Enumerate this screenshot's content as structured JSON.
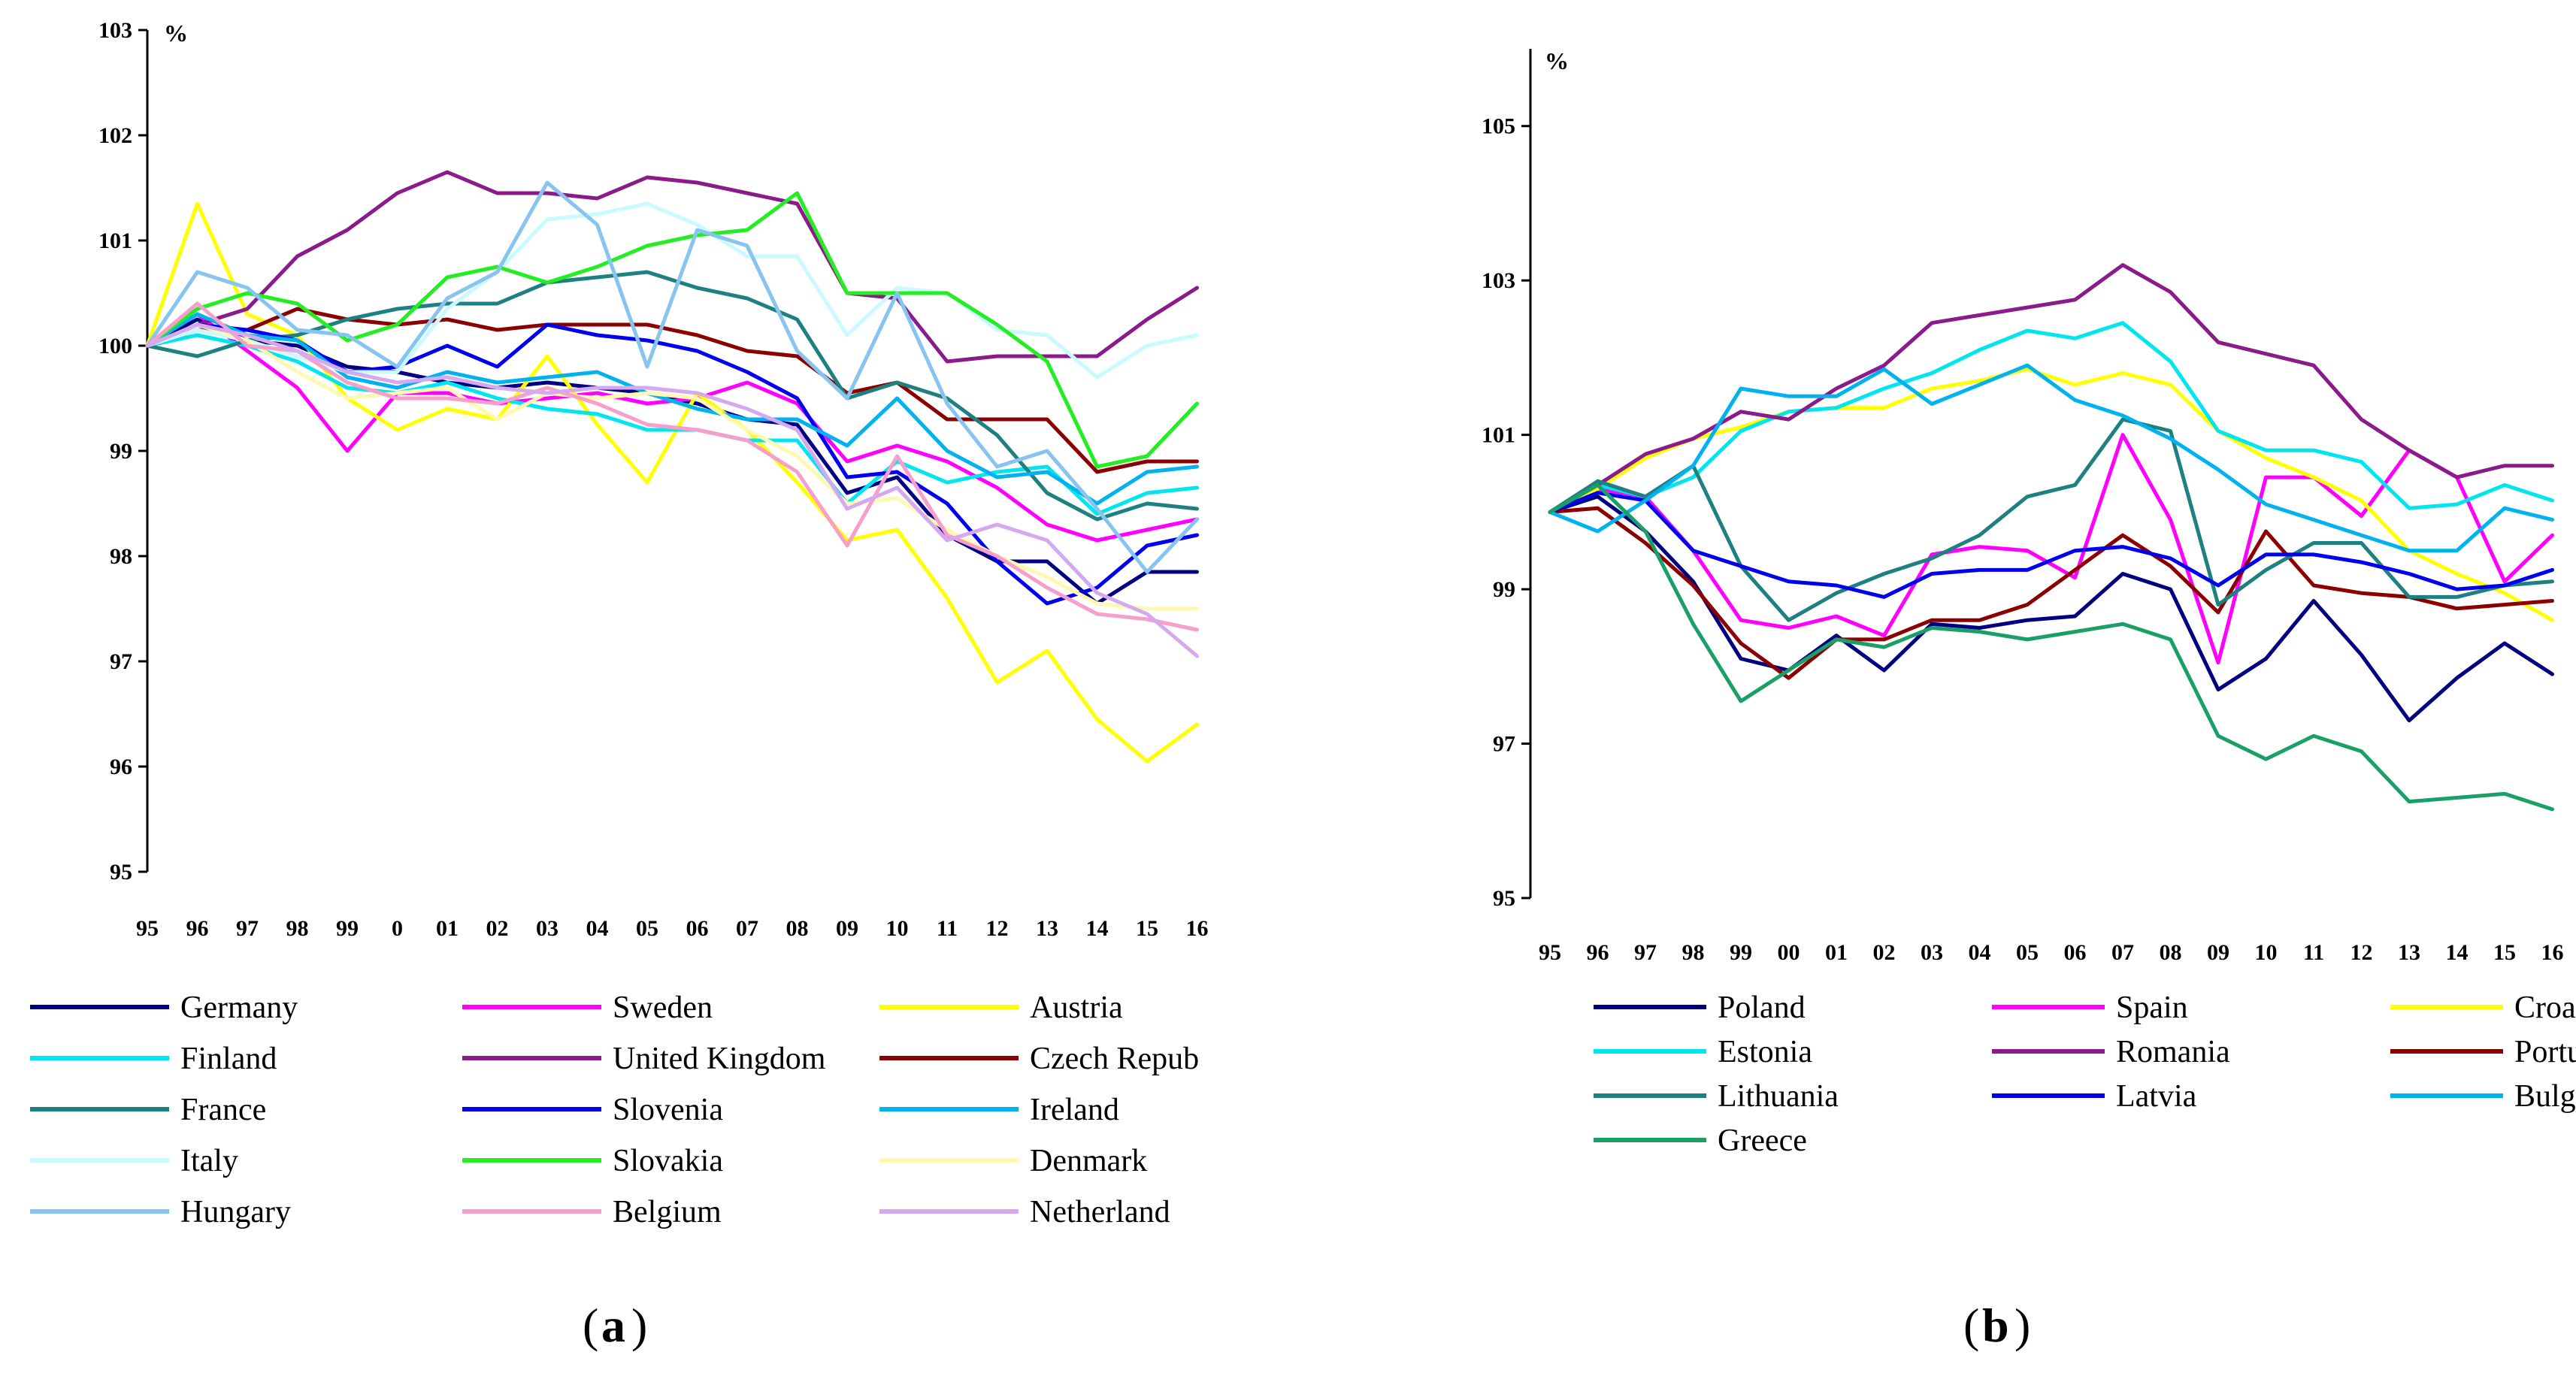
{
  "chart_data": [
    {
      "type": "line",
      "panel_label": "a",
      "ylabel": "%",
      "ylim": [
        95,
        103
      ],
      "yticks": [
        95,
        96,
        97,
        98,
        99,
        100,
        101,
        102,
        103
      ],
      "categories": [
        "95",
        "96",
        "97",
        "98",
        "99",
        "0",
        "01",
        "02",
        "03",
        "04",
        "05",
        "06",
        "07",
        "08",
        "09",
        "10",
        "11",
        "12",
        "13",
        "14",
        "15",
        "16"
      ],
      "legend_position": "bottom",
      "series": [
        {
          "name": "Germany",
          "color": "#000080",
          "values": [
            100,
            100.25,
            100.05,
            100.0,
            99.8,
            99.75,
            99.65,
            99.6,
            99.65,
            99.6,
            99.55,
            99.45,
            99.3,
            99.25,
            98.6,
            98.75,
            98.2,
            97.95,
            97.95,
            97.55,
            97.85,
            97.85
          ]
        },
        {
          "name": "Sweden",
          "color": "#ff00ff",
          "values": [
            100,
            100.3,
            99.95,
            99.6,
            99.0,
            99.55,
            99.55,
            99.45,
            99.5,
            99.55,
            99.45,
            99.5,
            99.65,
            99.45,
            98.9,
            99.05,
            98.9,
            98.65,
            98.3,
            98.15,
            98.25,
            98.35
          ]
        },
        {
          "name": "Austria",
          "color": "#ffff00",
          "values": [
            100,
            101.35,
            100.3,
            100.1,
            99.5,
            99.2,
            99.4,
            99.3,
            99.9,
            99.25,
            98.7,
            99.55,
            99.2,
            98.7,
            98.15,
            98.25,
            97.6,
            96.8,
            97.1,
            96.45,
            96.05,
            96.4
          ]
        },
        {
          "name": "Finland",
          "color": "#00e5ee",
          "values": [
            100,
            100.1,
            100.0,
            99.85,
            99.6,
            99.55,
            99.65,
            99.5,
            99.4,
            99.35,
            99.2,
            99.2,
            99.1,
            99.1,
            98.5,
            98.9,
            98.7,
            98.8,
            98.85,
            98.4,
            98.6,
            98.65
          ]
        },
        {
          "name": "United Kingdom",
          "color": "#8b1a8b",
          "values": [
            100,
            100.2,
            100.35,
            100.85,
            101.1,
            101.45,
            101.65,
            101.45,
            101.45,
            101.4,
            101.6,
            101.55,
            101.45,
            101.35,
            100.5,
            100.45,
            99.85,
            99.9,
            99.9,
            99.9,
            100.25,
            100.55
          ]
        },
        {
          "name": "Czech Repub",
          "color": "#8b0000",
          "values": [
            100,
            100.15,
            100.15,
            100.35,
            100.25,
            100.2,
            100.25,
            100.15,
            100.2,
            100.2,
            100.2,
            100.1,
            99.95,
            99.9,
            99.55,
            99.65,
            99.3,
            99.3,
            99.3,
            98.8,
            98.9,
            98.9
          ]
        },
        {
          "name": "France",
          "color": "#1e8080",
          "values": [
            100,
            99.9,
            100.05,
            100.1,
            100.25,
            100.35,
            100.4,
            100.4,
            100.6,
            100.65,
            100.7,
            100.55,
            100.45,
            100.25,
            99.5,
            99.65,
            99.5,
            99.15,
            98.6,
            98.35,
            98.5,
            98.45
          ]
        },
        {
          "name": "Slovenia",
          "color": "#0000ee",
          "values": [
            100,
            100.2,
            100.15,
            100.05,
            99.75,
            99.8,
            100.0,
            99.8,
            100.2,
            100.1,
            100.05,
            99.95,
            99.75,
            99.5,
            98.75,
            98.8,
            98.5,
            97.95,
            97.55,
            97.7,
            98.1,
            98.2
          ]
        },
        {
          "name": "Ireland",
          "color": "#00b2ee",
          "values": [
            100,
            100.3,
            100.1,
            100.05,
            99.7,
            99.6,
            99.75,
            99.65,
            99.7,
            99.75,
            99.55,
            99.4,
            99.3,
            99.3,
            99.05,
            99.5,
            99.0,
            98.75,
            98.8,
            98.5,
            98.8,
            98.85
          ]
        },
        {
          "name": "Italy",
          "color": "#c8faff",
          "values": [
            100,
            100.15,
            100.05,
            99.9,
            99.75,
            99.75,
            100.35,
            100.7,
            101.2,
            101.25,
            101.35,
            101.15,
            100.85,
            100.85,
            100.1,
            100.55,
            100.5,
            100.15,
            100.1,
            99.7,
            100.0,
            100.1
          ]
        },
        {
          "name": "Slovakia",
          "color": "#22ee22",
          "values": [
            100,
            100.35,
            100.5,
            100.4,
            100.05,
            100.2,
            100.65,
            100.75,
            100.6,
            100.75,
            100.95,
            101.05,
            101.1,
            101.45,
            100.5,
            100.5,
            100.5,
            100.2,
            99.85,
            98.85,
            98.95,
            99.45
          ]
        },
        {
          "name": "Denmark",
          "color": "#fff8b0",
          "values": [
            100,
            100.2,
            100.05,
            99.75,
            99.5,
            99.55,
            99.6,
            99.3,
            99.55,
            99.5,
            99.55,
            99.5,
            99.2,
            98.95,
            98.5,
            98.55,
            98.25,
            98.0,
            97.8,
            97.55,
            97.5,
            97.5
          ]
        },
        {
          "name": "Hungary",
          "color": "#87c4f0",
          "values": [
            100,
            100.7,
            100.55,
            100.15,
            100.1,
            99.8,
            100.45,
            100.7,
            101.55,
            101.15,
            99.8,
            101.1,
            100.95,
            99.95,
            99.5,
            100.5,
            99.45,
            98.85,
            99.0,
            98.45,
            97.85,
            98.35
          ]
        },
        {
          "name": "Belgium",
          "color": "#f59fca",
          "values": [
            100,
            100.4,
            100.0,
            99.95,
            99.65,
            99.5,
            99.5,
            99.45,
            99.6,
            99.45,
            99.25,
            99.2,
            99.1,
            98.8,
            98.1,
            98.95,
            98.2,
            98.0,
            97.7,
            97.45,
            97.4,
            97.3
          ]
        },
        {
          "name": "Netherland",
          "color": "#d6a8f0",
          "values": [
            100,
            100.2,
            100.1,
            99.95,
            99.75,
            99.65,
            99.7,
            99.6,
            99.55,
            99.6,
            99.6,
            99.55,
            99.4,
            99.2,
            98.45,
            98.65,
            98.15,
            98.3,
            98.15,
            97.65,
            97.45,
            97.05
          ]
        }
      ]
    },
    {
      "type": "line",
      "panel_label": "b",
      "ylabel": "%",
      "ylim": [
        95,
        106
      ],
      "yticks": [
        95,
        97,
        99,
        101,
        103,
        105
      ],
      "categories": [
        "95",
        "96",
        "97",
        "98",
        "99",
        "00",
        "01",
        "02",
        "03",
        "04",
        "05",
        "06",
        "07",
        "08",
        "09",
        "10",
        "11",
        "12",
        "13",
        "14",
        "15",
        "16"
      ],
      "legend_position": "bottom",
      "series": [
        {
          "name": "Poland",
          "color": "#000080",
          "values": [
            100,
            100.2,
            99.75,
            99.1,
            98.1,
            97.95,
            98.4,
            97.95,
            98.55,
            98.5,
            98.6,
            98.65,
            99.2,
            99.0,
            97.7,
            98.1,
            98.85,
            98.15,
            97.3,
            97.85,
            98.3,
            97.9
          ]
        },
        {
          "name": "Spain",
          "color": "#ff00ff",
          "values": [
            100,
            100.3,
            100.2,
            99.5,
            98.6,
            98.5,
            98.65,
            98.4,
            99.45,
            99.55,
            99.5,
            99.15,
            101.0,
            99.9,
            98.05,
            100.45,
            100.45,
            99.95,
            100.8,
            100.45,
            99.1,
            99.7
          ]
        },
        {
          "name": "Croatia",
          "color": "#ffff00",
          "values": [
            100,
            100.3,
            100.7,
            100.95,
            101.1,
            101.3,
            101.35,
            101.35,
            101.6,
            101.7,
            101.85,
            101.65,
            101.8,
            101.65,
            101.05,
            100.7,
            100.45,
            100.15,
            99.5,
            99.2,
            98.95,
            98.6
          ]
        },
        {
          "name": "Estonia",
          "color": "#00e5ee",
          "values": [
            100,
            100.35,
            100.2,
            100.45,
            101.05,
            101.3,
            101.35,
            101.6,
            101.8,
            102.1,
            102.35,
            102.25,
            102.45,
            101.95,
            101.05,
            100.8,
            100.8,
            100.65,
            100.05,
            100.1,
            100.35,
            100.15
          ]
        },
        {
          "name": "Romania",
          "color": "#8b1a8b",
          "values": [
            100,
            100.35,
            100.75,
            100.95,
            101.3,
            101.2,
            101.6,
            101.9,
            102.45,
            102.55,
            102.65,
            102.75,
            103.2,
            102.85,
            102.2,
            102.05,
            101.9,
            101.2,
            100.8,
            100.45,
            100.6,
            100.6
          ]
        },
        {
          "name": "Portugal",
          "color": "#8b0000",
          "values": [
            100,
            100.05,
            99.6,
            99.05,
            98.3,
            97.85,
            98.35,
            98.35,
            98.6,
            98.6,
            98.8,
            99.25,
            99.7,
            99.3,
            98.7,
            99.75,
            99.05,
            98.95,
            98.9,
            98.75,
            98.8,
            98.85
          ]
        },
        {
          "name": "Lithuania",
          "color": "#1e8080",
          "values": [
            100,
            100.4,
            100.2,
            100.6,
            99.3,
            98.6,
            98.95,
            99.2,
            99.4,
            99.7,
            100.2,
            100.35,
            101.2,
            101.05,
            98.8,
            99.25,
            99.6,
            99.6,
            98.9,
            98.9,
            99.05,
            99.1
          ]
        },
        {
          "name": "Latvia",
          "color": "#0000ee",
          "values": [
            100,
            100.25,
            100.15,
            99.5,
            99.3,
            99.1,
            99.05,
            98.9,
            99.2,
            99.25,
            99.25,
            99.5,
            99.55,
            99.4,
            99.05,
            99.45,
            99.45,
            99.35,
            99.2,
            99.0,
            99.05,
            99.25
          ]
        },
        {
          "name": "Bulgaria",
          "color": "#00b2ee",
          "values": [
            100,
            99.75,
            100.15,
            100.6,
            101.6,
            101.5,
            101.5,
            101.85,
            101.4,
            101.65,
            101.9,
            101.45,
            101.25,
            100.95,
            100.55,
            100.1,
            99.9,
            99.7,
            99.5,
            99.5,
            100.05,
            99.9
          ]
        },
        {
          "name": "Greece",
          "color": "#1aa066",
          "values": [
            100,
            100.35,
            99.75,
            98.55,
            97.55,
            97.95,
            98.35,
            98.25,
            98.5,
            98.45,
            98.35,
            98.45,
            98.55,
            98.35,
            97.1,
            96.8,
            97.1,
            96.9,
            96.25,
            96.3,
            96.35,
            96.15
          ]
        }
      ]
    }
  ],
  "captions": {
    "a": "a",
    "b": "b"
  }
}
